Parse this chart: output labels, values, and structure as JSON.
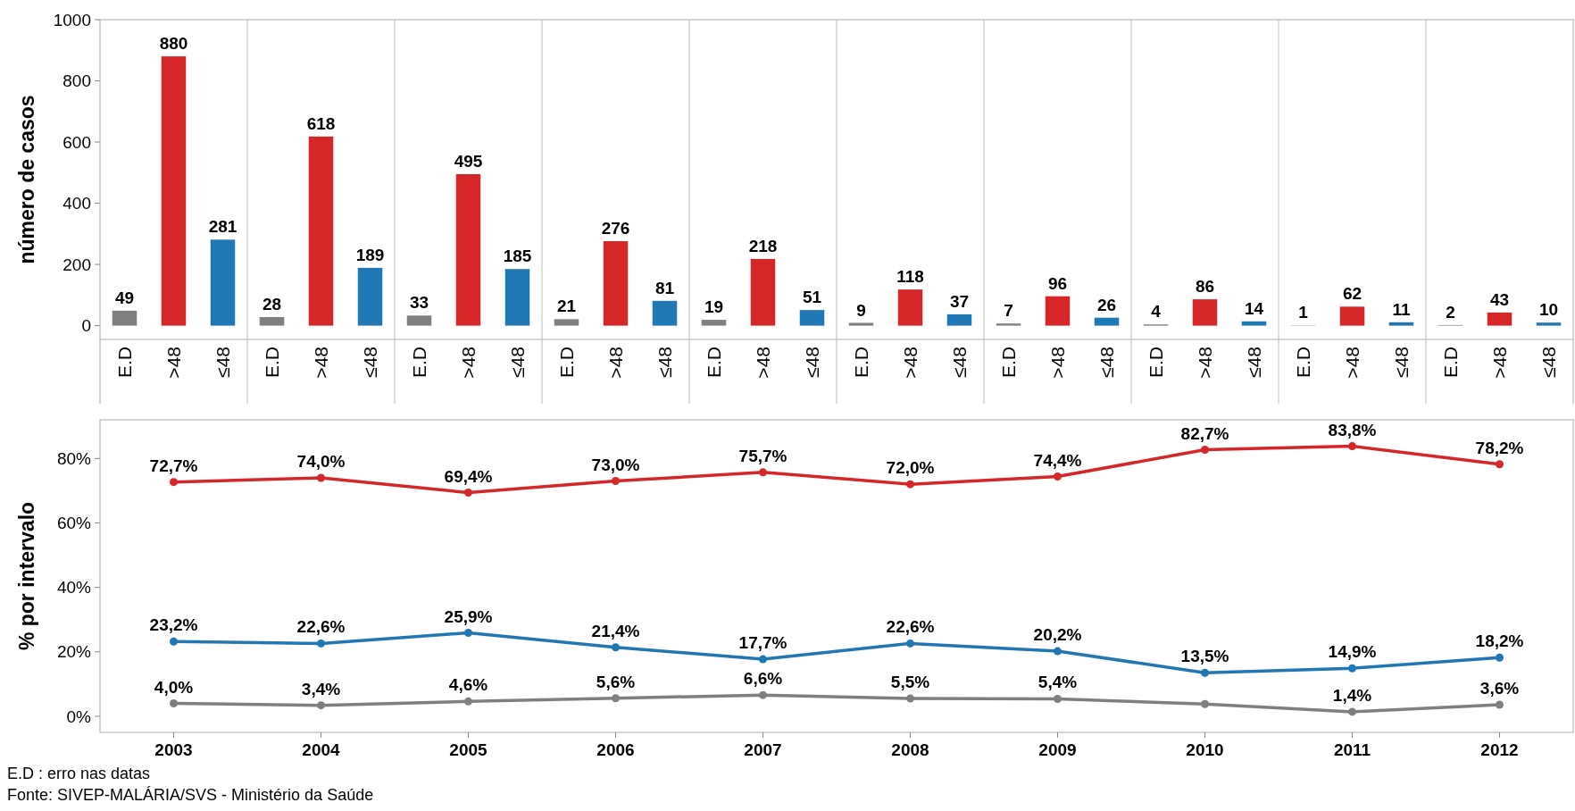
{
  "chart_data": [
    {
      "type": "bar",
      "ylabel": "número de casos",
      "categories": [
        "E.D",
        ">48",
        "≤48",
        "E.D",
        ">48",
        "≤48",
        "E.D",
        ">48",
        "≤48",
        "E.D",
        ">48",
        "≤48",
        "E.D",
        ">48",
        "≤48",
        "E.D",
        ">48",
        "≤48",
        "E.D",
        ">48",
        "≤48",
        "E.D",
        ">48",
        "≤48",
        "E.D",
        ">48",
        "≤48",
        "E.D",
        ">48",
        "≤48"
      ],
      "values": [
        49,
        880,
        281,
        28,
        618,
        189,
        33,
        495,
        185,
        21,
        276,
        81,
        19,
        218,
        51,
        9,
        118,
        37,
        7,
        96,
        26,
        4,
        86,
        14,
        1,
        62,
        11,
        2,
        43,
        10
      ],
      "colors": [
        "#7f7f7f",
        "#d62728",
        "#1f77b4",
        "#7f7f7f",
        "#d62728",
        "#1f77b4",
        "#7f7f7f",
        "#d62728",
        "#1f77b4",
        "#7f7f7f",
        "#d62728",
        "#1f77b4",
        "#7f7f7f",
        "#d62728",
        "#1f77b4",
        "#7f7f7f",
        "#d62728",
        "#1f77b4",
        "#7f7f7f",
        "#d62728",
        "#1f77b4",
        "#7f7f7f",
        "#d62728",
        "#1f77b4",
        "#7f7f7f",
        "#d62728",
        "#1f77b4",
        "#7f7f7f",
        "#d62728",
        "#1f77b4"
      ],
      "ylim": [
        -45,
        1000
      ],
      "yticks": [
        0,
        200,
        400,
        600,
        800,
        1000
      ],
      "data_labels": true
    },
    {
      "type": "line",
      "ylabel": "% por intervalo",
      "categories": [
        "2003",
        "2004",
        "2005",
        "2006",
        "2007",
        "2008",
        "2009",
        "2010",
        "2011",
        "2012"
      ],
      "series": [
        {
          "color": "#d62728",
          "values": [
            72.7,
            74.0,
            69.4,
            73.0,
            75.7,
            72.0,
            74.4,
            82.7,
            83.8,
            78.2
          ],
          "value_labels": [
            "72,7%",
            "74,0%",
            "69,4%",
            "73,0%",
            "75,7%",
            "72,0%",
            "74,4%",
            "82,7%",
            "83,8%",
            "78,2%"
          ]
        },
        {
          "color": "#1f77b4",
          "values": [
            23.2,
            22.6,
            25.9,
            21.4,
            17.7,
            22.6,
            20.2,
            13.5,
            14.9,
            18.2
          ],
          "value_labels": [
            "23,2%",
            "22,6%",
            "25,9%",
            "21,4%",
            "17,7%",
            "22,6%",
            "20,2%",
            "13,5%",
            "14,9%",
            "18,2%"
          ]
        },
        {
          "color": "#7f7f7f",
          "values": [
            4.0,
            3.4,
            4.6,
            5.6,
            6.6,
            5.5,
            5.4,
            3.8,
            1.4,
            3.6
          ],
          "value_labels": [
            "4,0%",
            "3,4%",
            "4,6%",
            "5,6%",
            "6,6%",
            "5,5%",
            "5,4%",
            null,
            "1,4%",
            "3,6%"
          ]
        }
      ],
      "ylim": [
        -5,
        92
      ],
      "yticks": [
        {
          "value": 0,
          "label": "0%"
        },
        {
          "value": 20,
          "label": "20%"
        },
        {
          "value": 40,
          "label": "40%"
        },
        {
          "value": 60,
          "label": "60%"
        },
        {
          "value": 80,
          "label": "80%"
        }
      ],
      "marker": "circle",
      "line_style": "solid",
      "annotations": [
        "E.D : erro nas datas",
        "Fonte: SIVEP-MALÁRIA/SVS - Ministério da Saúde"
      ]
    }
  ]
}
